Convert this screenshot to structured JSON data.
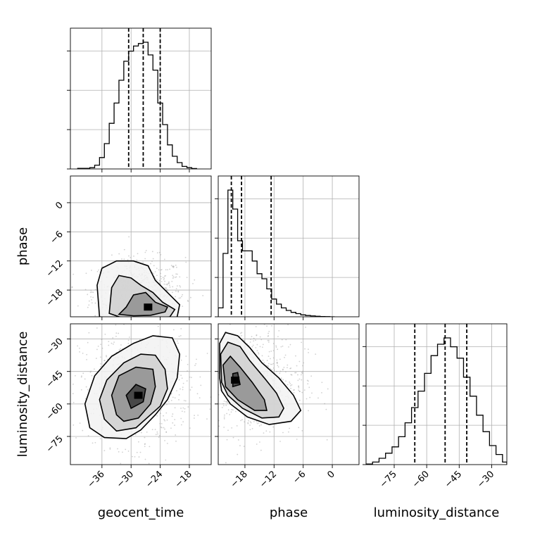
{
  "chart_data": {
    "type": "corner",
    "parameters": [
      "geocent_time",
      "phase",
      "luminosity_distance"
    ],
    "axis_labels": {
      "geocent_time": "geocent_time",
      "phase": "phase",
      "luminosity_distance": "luminosity_distance"
    },
    "ranges": {
      "geocent_time": [
        -42.5,
        -13.5
      ],
      "phase": [
        -23.5,
        5.5
      ],
      "luminosity_distance": [
        -88.0,
        -23.0
      ]
    },
    "ticks": {
      "geocent_time": [
        -36,
        -30,
        -24,
        -18
      ],
      "phase": [
        -18,
        -12,
        -6,
        0
      ],
      "luminosity_distance": [
        -75,
        -60,
        -45,
        -30
      ]
    },
    "tick_labels": {
      "geocent_time": [
        "−36",
        "−30",
        "−24",
        "−18"
      ],
      "phase": [
        "−18",
        "−12",
        "−6",
        "0"
      ],
      "luminosity_distance": [
        "−75",
        "−60",
        "−45",
        "−30"
      ]
    },
    "quantiles": {
      "geocent_time": [
        -30.5,
        -27.5,
        -24.0
      ],
      "phase": [
        -20.8,
        -18.7,
        -12.6
      ],
      "luminosity_distance": [
        -65.5,
        -51.5,
        -41.5
      ]
    },
    "histograms": {
      "geocent_time": {
        "edges": [
          -41.0,
          -38.5,
          -37.5,
          -36.5,
          -35.5,
          -34.5,
          -33.5,
          -32.5,
          -31.5,
          -30.5,
          -29.5,
          -28.5,
          -27.5,
          -26.5,
          -25.5,
          -24.5,
          -23.5,
          -22.5,
          -21.5,
          -20.5,
          -19.5,
          -18.5,
          -17.5,
          -16.5
        ],
        "counts": [
          0.005,
          0.01,
          0.03,
          0.09,
          0.2,
          0.36,
          0.52,
          0.7,
          0.85,
          0.93,
          0.97,
          0.99,
          1.0,
          0.9,
          0.78,
          0.52,
          0.35,
          0.19,
          0.1,
          0.05,
          0.02,
          0.01,
          0.003
        ]
      },
      "phase": {
        "edges": [
          -23.5,
          -22.5,
          -21.5,
          -20.5,
          -19.5,
          -18.5,
          -17.5,
          -16.5,
          -15.5,
          -14.5,
          -13.5,
          -12.5,
          -11.5,
          -10.5,
          -9.5,
          -8.5,
          -7.5,
          -6.5,
          -5.5,
          -4.5,
          -3.5,
          -2.5,
          -1.5,
          -0.5,
          0.5
        ],
        "counts": [
          0.07,
          0.5,
          1.0,
          0.85,
          0.6,
          0.52,
          0.52,
          0.44,
          0.34,
          0.3,
          0.22,
          0.14,
          0.1,
          0.07,
          0.05,
          0.035,
          0.025,
          0.015,
          0.01,
          0.007,
          0.004,
          0.002,
          0.001,
          0.0
        ]
      },
      "luminosity_distance": {
        "edges": [
          -88.0,
          -85.0,
          -82.0,
          -79.0,
          -76.0,
          -73.0,
          -70.0,
          -67.0,
          -64.0,
          -61.0,
          -58.0,
          -55.0,
          -52.0,
          -49.0,
          -46.0,
          -43.0,
          -40.0,
          -37.0,
          -34.0,
          -31.0,
          -28.0,
          -25.0,
          -23.0
        ],
        "counts": [
          0.005,
          0.02,
          0.05,
          0.09,
          0.14,
          0.22,
          0.33,
          0.45,
          0.58,
          0.72,
          0.86,
          0.95,
          1.0,
          0.93,
          0.84,
          0.69,
          0.54,
          0.39,
          0.26,
          0.15,
          0.08,
          0.02
        ]
      }
    },
    "posteriors_2d": [
      {
        "x": "geocent_time",
        "y": "phase",
        "contours": [
          [
            [
              -32.5,
              -23.0
            ],
            [
              -31.0,
              -21.5
            ],
            [
              -29.5,
              -19.0
            ],
            [
              -27.0,
              -18.5
            ],
            [
              -25.0,
              -20.5
            ],
            [
              -22.5,
              -21.5
            ],
            [
              -23.0,
              -22.5
            ],
            [
              -26.0,
              -23.2
            ],
            [
              -29.5,
              -23.3
            ]
          ],
          [
            [
              -34.5,
              -22.8
            ],
            [
              -34.0,
              -17.5
            ],
            [
              -32.5,
              -15.0
            ],
            [
              -30.0,
              -15.5
            ],
            [
              -28.0,
              -17.0
            ],
            [
              -25.5,
              -18.5
            ],
            [
              -23.5,
              -20.5
            ],
            [
              -21.0,
              -22.0
            ],
            [
              -22.0,
              -23.5
            ],
            [
              -26.0,
              -24.0
            ],
            [
              -31.0,
              -24.0
            ]
          ],
          [
            [
              -36.5,
              -23.5
            ],
            [
              -37.0,
              -17.0
            ],
            [
              -36.0,
              -13.5
            ],
            [
              -33.0,
              -12.0
            ],
            [
              -29.5,
              -12.0
            ],
            [
              -26.5,
              -13.0
            ],
            [
              -25.0,
              -16.0
            ],
            [
              -22.5,
              -18.5
            ],
            [
              -20.0,
              -21.0
            ],
            [
              -20.5,
              -23.5
            ],
            [
              -24.0,
              -24.2
            ],
            [
              -30.0,
              -24.2
            ]
          ]
        ],
        "density_peak": [
          -26.5,
          -21.5
        ]
      },
      {
        "x": "geocent_time",
        "y": "luminosity_distance",
        "contours": [
          [
            [
              -30.0,
              -62.0
            ],
            [
              -31.0,
              -56.0
            ],
            [
              -29.0,
              -51.0
            ],
            [
              -27.0,
              -53.0
            ],
            [
              -27.5,
              -59.0
            ]
          ],
          [
            [
              -33.0,
              -65.0
            ],
            [
              -34.0,
              -56.0
            ],
            [
              -32.5,
              -47.0
            ],
            [
              -29.0,
              -43.0
            ],
            [
              -25.5,
              -44.0
            ],
            [
              -25.0,
              -52.0
            ],
            [
              -26.0,
              -60.0
            ],
            [
              -28.5,
              -66.5
            ],
            [
              -31.5,
              -68.0
            ]
          ],
          [
            [
              -35.5,
              -67.0
            ],
            [
              -36.5,
              -58.0
            ],
            [
              -35.0,
              -49.0
            ],
            [
              -31.5,
              -41.0
            ],
            [
              -28.0,
              -37.0
            ],
            [
              -25.0,
              -37.5
            ],
            [
              -23.0,
              -44.0
            ],
            [
              -22.5,
              -53.0
            ],
            [
              -24.0,
              -61.0
            ],
            [
              -26.5,
              -66.0
            ],
            [
              -29.0,
              -71.0
            ],
            [
              -33.0,
              -72.5
            ]
          ],
          [
            [
              -38.5,
              -71.0
            ],
            [
              -39.5,
              -60.0
            ],
            [
              -37.5,
              -47.0
            ],
            [
              -34.0,
              -38.0
            ],
            [
              -29.5,
              -32.0
            ],
            [
              -25.5,
              -28.5
            ],
            [
              -21.5,
              -29.5
            ],
            [
              -20.0,
              -37.0
            ],
            [
              -20.5,
              -48.0
            ],
            [
              -22.5,
              -58.0
            ],
            [
              -25.0,
              -65.0
            ],
            [
              -28.0,
              -72.0
            ],
            [
              -31.0,
              -76.0
            ],
            [
              -35.5,
              -75.5
            ]
          ]
        ],
        "density_peak": [
          -28.5,
          -56.0
        ]
      },
      {
        "x": "phase",
        "y": "luminosity_distance",
        "contours": [
          [
            [
              -20.5,
              -52.0
            ],
            [
              -20.5,
              -46.0
            ],
            [
              -19.5,
              -45.5
            ],
            [
              -19.0,
              -51.0
            ]
          ],
          [
            [
              -22.0,
              -52.0
            ],
            [
              -22.5,
              -42.0
            ],
            [
              -21.0,
              -38.0
            ],
            [
              -19.0,
              -43.0
            ],
            [
              -16.5,
              -50.0
            ],
            [
              -14.0,
              -58.0
            ],
            [
              -13.5,
              -63.0
            ],
            [
              -16.0,
              -63.0
            ],
            [
              -19.5,
              -58.0
            ]
          ],
          [
            [
              -22.8,
              -50.0
            ],
            [
              -23.0,
              -37.0
            ],
            [
              -21.5,
              -31.5
            ],
            [
              -19.0,
              -33.5
            ],
            [
              -17.0,
              -40.0
            ],
            [
              -14.0,
              -48.0
            ],
            [
              -11.5,
              -55.0
            ],
            [
              -10.0,
              -62.0
            ],
            [
              -11.0,
              -66.0
            ],
            [
              -14.5,
              -66.5
            ],
            [
              -18.5,
              -62.0
            ],
            [
              -21.5,
              -56.0
            ]
          ],
          [
            [
              -23.2,
              -48.0
            ],
            [
              -23.2,
              -32.0
            ],
            [
              -22.0,
              -27.0
            ],
            [
              -19.5,
              -28.5
            ],
            [
              -17.0,
              -34.0
            ],
            [
              -14.5,
              -41.0
            ],
            [
              -11.0,
              -48.0
            ],
            [
              -8.0,
              -56.0
            ],
            [
              -6.5,
              -63.0
            ],
            [
              -8.5,
              -68.0
            ],
            [
              -13.0,
              -69.5
            ],
            [
              -17.5,
              -66.0
            ],
            [
              -21.0,
              -60.0
            ],
            [
              -22.8,
              -54.0
            ]
          ]
        ],
        "density_peak": [
          -20.0,
          -49.0
        ]
      }
    ],
    "grid": true
  }
}
